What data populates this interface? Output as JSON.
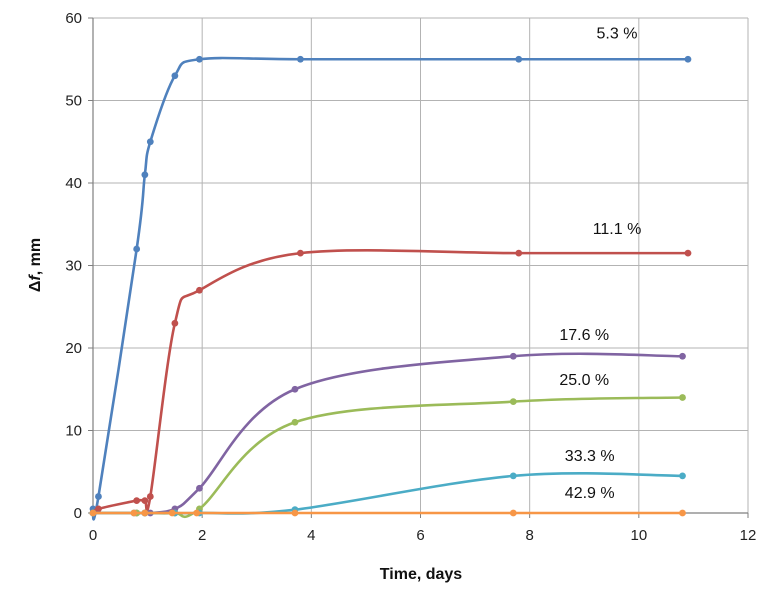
{
  "chart_data": {
    "type": "line",
    "xlabel": "Time, days",
    "ylabel_parts": [
      "Δ",
      "f",
      ", mm"
    ],
    "xlim": [
      0,
      12
    ],
    "ylim": [
      0,
      60
    ],
    "xticks": [
      "0",
      "2",
      "4",
      "6",
      "8",
      "10",
      "12"
    ],
    "yticks": [
      "0",
      "10",
      "20",
      "30",
      "40",
      "50",
      "60"
    ],
    "grid": true,
    "legend": "inline labels",
    "series": [
      {
        "name": "5.3 %",
        "color": "#4F81BD",
        "label_at": [
          9.6,
          57.5
        ],
        "points": [
          [
            0,
            0.5
          ],
          [
            0.1,
            2
          ],
          [
            0.8,
            32
          ],
          [
            0.95,
            41
          ],
          [
            1.05,
            45
          ],
          [
            1.5,
            53
          ],
          [
            1.95,
            55
          ],
          [
            3.8,
            55
          ],
          [
            7.8,
            55
          ],
          [
            10.9,
            55
          ]
        ]
      },
      {
        "name": "11.1 %",
        "color": "#C0504D",
        "label_at": [
          9.6,
          33.8
        ],
        "points": [
          [
            0,
            0
          ],
          [
            0.1,
            0.5
          ],
          [
            0.8,
            1.5
          ],
          [
            0.95,
            1.5
          ],
          [
            1.05,
            2
          ],
          [
            1.5,
            23
          ],
          [
            1.95,
            27
          ],
          [
            3.8,
            31.5
          ],
          [
            7.8,
            31.5
          ],
          [
            10.9,
            31.5
          ]
        ]
      },
      {
        "name": "17.6 %",
        "color": "#8064A2",
        "label_at": [
          9.0,
          21.0
        ],
        "points": [
          [
            0,
            0
          ],
          [
            0.8,
            0
          ],
          [
            0.95,
            0
          ],
          [
            1.05,
            0
          ],
          [
            1.5,
            0.5
          ],
          [
            1.95,
            3
          ],
          [
            3.7,
            15
          ],
          [
            7.7,
            19
          ],
          [
            10.8,
            19
          ]
        ]
      },
      {
        "name": "25.0 %",
        "color": "#9BBB59",
        "label_at": [
          9.0,
          15.5
        ],
        "points": [
          [
            0,
            0
          ],
          [
            0.8,
            0
          ],
          [
            0.95,
            0
          ],
          [
            1.5,
            0
          ],
          [
            1.95,
            0.5
          ],
          [
            3.7,
            11
          ],
          [
            7.7,
            13.5
          ],
          [
            10.8,
            14
          ]
        ]
      },
      {
        "name": "33.3 %",
        "color": "#4BACC6",
        "label_at": [
          9.1,
          6.3
        ],
        "points": [
          [
            0,
            0
          ],
          [
            0.75,
            0
          ],
          [
            0.95,
            0
          ],
          [
            1.5,
            0
          ],
          [
            1.95,
            0
          ],
          [
            3.7,
            0.4
          ],
          [
            7.7,
            4.5
          ],
          [
            10.8,
            4.5
          ]
        ]
      },
      {
        "name": "42.9 %",
        "color": "#F79646",
        "label_at": [
          9.1,
          1.8
        ],
        "points": [
          [
            0,
            0
          ],
          [
            0.75,
            0
          ],
          [
            0.95,
            0
          ],
          [
            1.45,
            0
          ],
          [
            1.9,
            0
          ],
          [
            3.7,
            0
          ],
          [
            7.7,
            0
          ],
          [
            10.8,
            0
          ]
        ]
      }
    ]
  }
}
